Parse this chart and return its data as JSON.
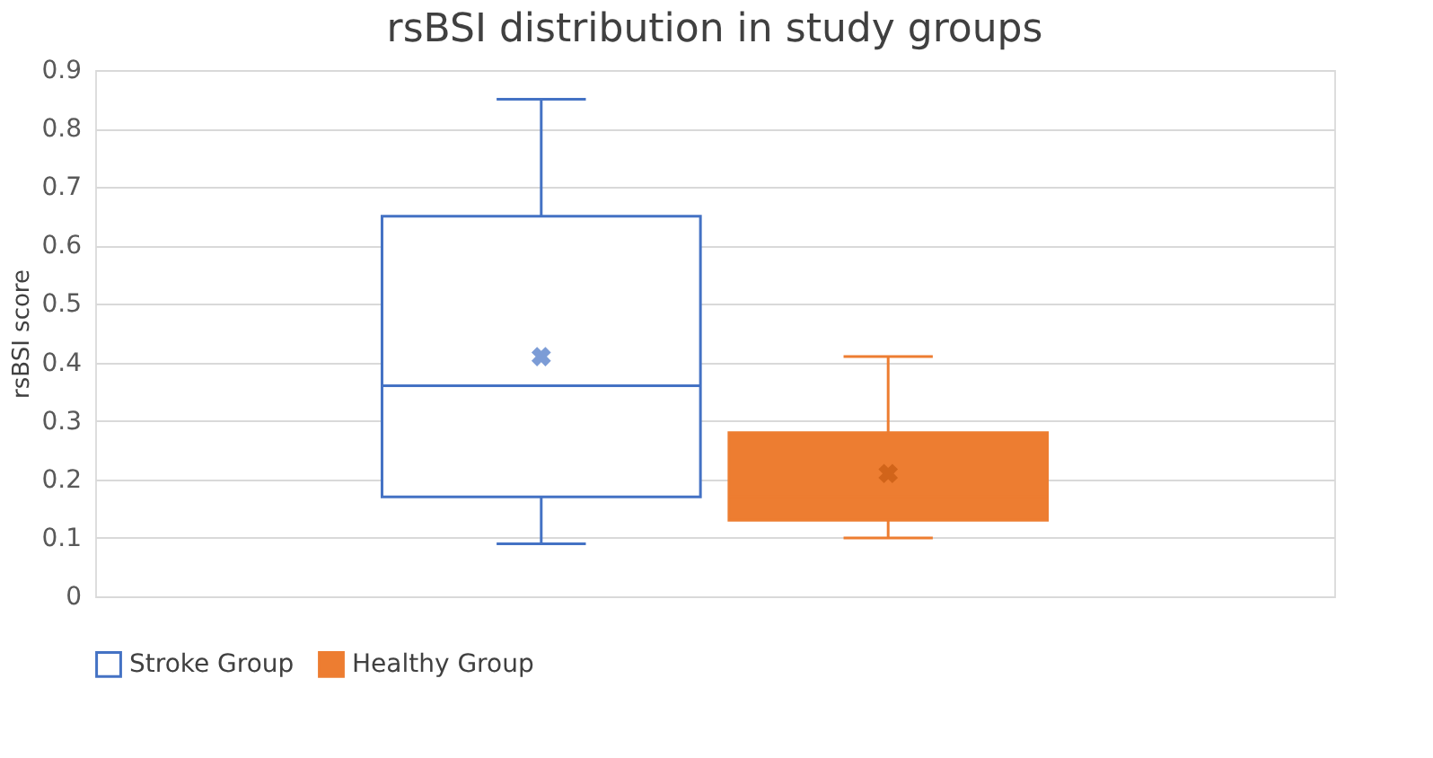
{
  "chart_data": {
    "type": "box",
    "title": "rsBSI distribution in study groups",
    "ylabel": "rsBSI score",
    "categories": [
      null
    ],
    "series": [
      {
        "name": "Stroke Group",
        "color": "#4472c4",
        "boxes": [
          {
            "low": 0.09,
            "q1": 0.17,
            "median": 0.36,
            "q3": 0.65,
            "high": 0.85,
            "mean": 0.41
          }
        ]
      },
      {
        "name": "Healthy Group",
        "color": "#ed7d31",
        "boxes": [
          {
            "low": 0.1,
            "q1": 0.13,
            "median": 0.17,
            "q3": 0.28,
            "high": 0.41,
            "mean": 0.21
          }
        ]
      }
    ],
    "ylim": [
      0,
      0.9
    ],
    "yticks": [
      0,
      0.1,
      0.2,
      0.3,
      0.4,
      0.5,
      0.6,
      0.7,
      0.8,
      0.9
    ],
    "grid": "y",
    "legend": "bottom"
  }
}
